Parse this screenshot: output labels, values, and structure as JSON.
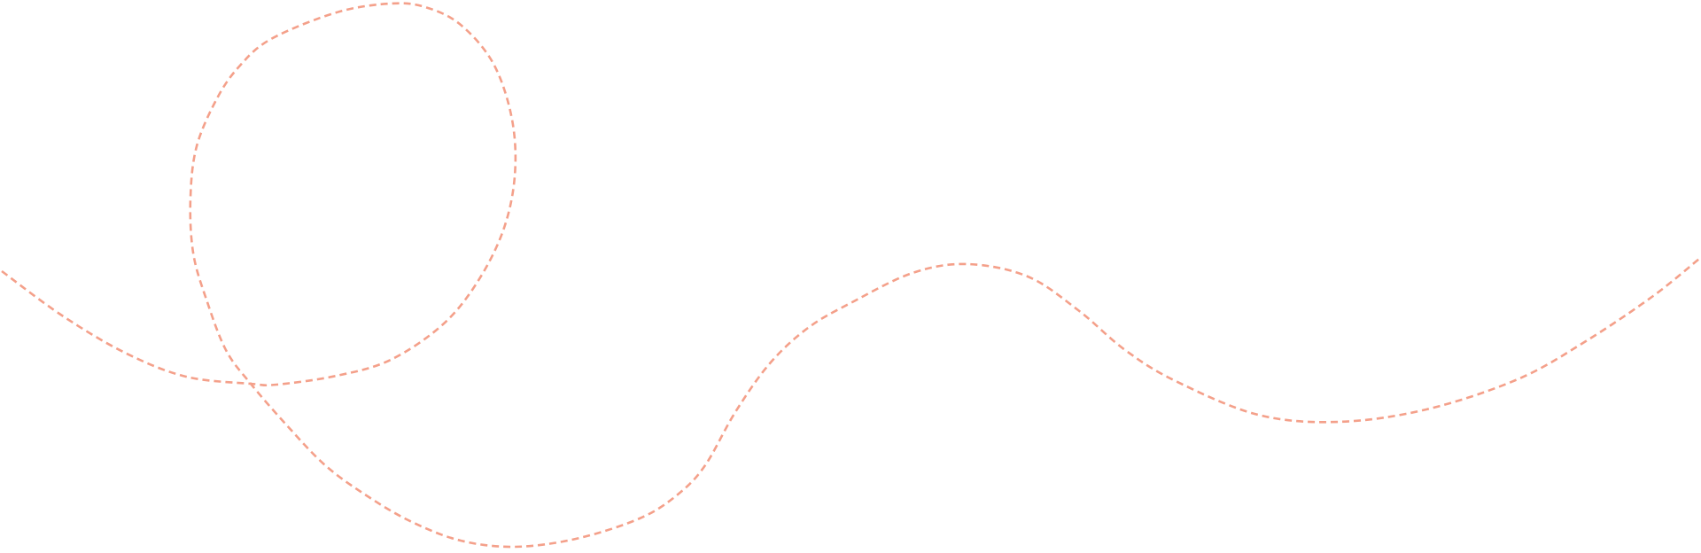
{
  "decoration": {
    "type": "dashed-curve",
    "stroke_color": "#f4a08a",
    "background_color": "#ffffff"
  }
}
